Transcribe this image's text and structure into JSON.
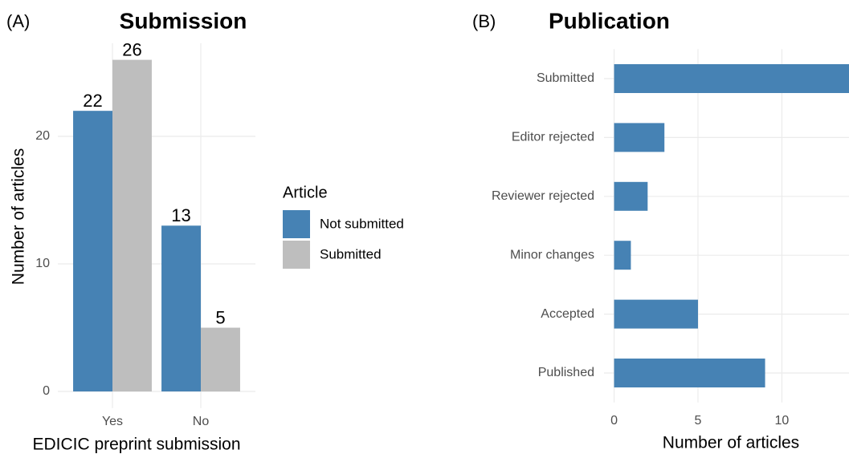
{
  "chart_data": [
    {
      "type": "bar",
      "panel_label": "(A)",
      "title": "Submission",
      "x_label": "EDICIC preprint submission",
      "y_label": "Number of articles",
      "categories": [
        "Yes",
        "No"
      ],
      "series": [
        {
          "name": "Not submitted",
          "color": "#4682b4",
          "values": [
            22,
            13
          ]
        },
        {
          "name": "Submitted",
          "color": "#bebebe",
          "values": [
            26,
            5
          ]
        }
      ],
      "legend_title": "Article",
      "ylim": [
        -1.3,
        27.3
      ],
      "yticks": [
        0,
        10,
        20
      ],
      "grid": true
    },
    {
      "type": "barh",
      "panel_label": "(B)",
      "title": "Publication",
      "x_label": "Number of articles",
      "categories": [
        "Submitted",
        "Editor rejected",
        "Reviewer rejected",
        "Minor changes",
        "Accepted",
        "Published"
      ],
      "values": [
        14,
        3,
        2,
        1,
        5,
        9
      ],
      "color": "#4682b4",
      "xlim": [
        -0.6,
        14
      ],
      "xticks": [
        0,
        5,
        10
      ],
      "grid": true
    }
  ]
}
